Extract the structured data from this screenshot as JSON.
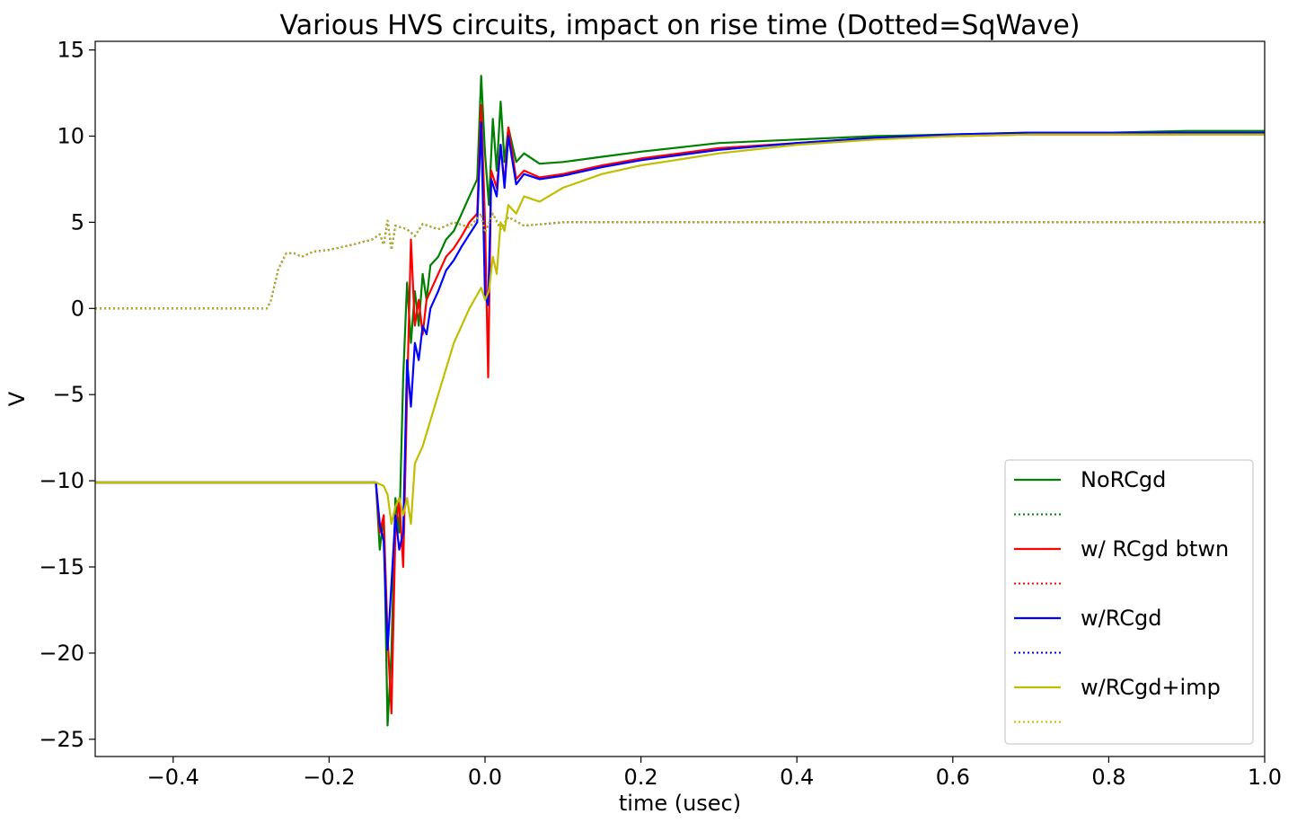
{
  "chart_data": {
    "type": "line",
    "title": "Various HVS circuits, impact on rise time (Dotted=SqWave)",
    "xlabel": "time (usec)",
    "ylabel": "V",
    "xlim": [
      -0.5,
      1.0
    ],
    "ylim": [
      -26,
      15.5
    ],
    "xticks": [
      -0.4,
      -0.2,
      0.0,
      0.2,
      0.4,
      0.6,
      0.8,
      1.0
    ],
    "xtick_labels": [
      "−0.4",
      "−0.2",
      "0.0",
      "0.2",
      "0.4",
      "0.6",
      "0.8",
      "1.0"
    ],
    "yticks": [
      15,
      10,
      5,
      0,
      -5,
      -10,
      -15,
      -20,
      -25
    ],
    "ytick_labels": [
      "15",
      "10",
      "5",
      "0",
      "−5",
      "−10",
      "−15",
      "−20",
      "−25"
    ],
    "grid": false,
    "legend_position": "lower-right",
    "series": [
      {
        "name": "NoRCgd",
        "color": "#008000",
        "style": "solid",
        "points": [
          [
            -0.5,
            -10.1
          ],
          [
            -0.14,
            -10.1
          ],
          [
            -0.135,
            -14
          ],
          [
            -0.13,
            -12
          ],
          [
            -0.125,
            -24.2
          ],
          [
            -0.12,
            -20
          ],
          [
            -0.115,
            -11
          ],
          [
            -0.11,
            -13
          ],
          [
            -0.105,
            -4
          ],
          [
            -0.1,
            1.5
          ],
          [
            -0.095,
            -2
          ],
          [
            -0.09,
            1
          ],
          [
            -0.085,
            -1
          ],
          [
            -0.08,
            2
          ],
          [
            -0.075,
            0.5
          ],
          [
            -0.07,
            2.5
          ],
          [
            -0.06,
            3
          ],
          [
            -0.05,
            4
          ],
          [
            -0.04,
            4.5
          ],
          [
            -0.03,
            5.5
          ],
          [
            -0.02,
            6.5
          ],
          [
            -0.01,
            7.5
          ],
          [
            -0.005,
            13.5
          ],
          [
            0.0,
            9
          ],
          [
            0.005,
            6
          ],
          [
            0.01,
            11
          ],
          [
            0.015,
            8
          ],
          [
            0.02,
            12
          ],
          [
            0.025,
            8.5
          ],
          [
            0.03,
            10.5
          ],
          [
            0.04,
            8.5
          ],
          [
            0.05,
            9
          ],
          [
            0.07,
            8.4
          ],
          [
            0.1,
            8.5
          ],
          [
            0.15,
            8.8
          ],
          [
            0.2,
            9.1
          ],
          [
            0.3,
            9.6
          ],
          [
            0.4,
            9.8
          ],
          [
            0.5,
            10
          ],
          [
            0.6,
            10.1
          ],
          [
            0.7,
            10.2
          ],
          [
            0.8,
            10.2
          ],
          [
            0.9,
            10.3
          ],
          [
            1.0,
            10.3
          ]
        ]
      },
      {
        "name": "",
        "color": "#008000",
        "style": "dotted",
        "points": [
          [
            -0.5,
            0
          ],
          [
            -0.28,
            0
          ],
          [
            -0.275,
            0.4
          ],
          [
            -0.265,
            2.3
          ],
          [
            -0.255,
            3.2
          ],
          [
            -0.245,
            3.2
          ],
          [
            -0.235,
            3
          ],
          [
            -0.22,
            3.3
          ],
          [
            -0.2,
            3.4
          ],
          [
            -0.17,
            3.7
          ],
          [
            -0.145,
            4
          ],
          [
            -0.135,
            4.3
          ],
          [
            -0.13,
            3.7
          ],
          [
            -0.125,
            5.1
          ],
          [
            -0.12,
            3.4
          ],
          [
            -0.115,
            4.8
          ],
          [
            -0.1,
            4.6
          ],
          [
            -0.09,
            4.2
          ],
          [
            -0.08,
            4.9
          ],
          [
            -0.06,
            4.6
          ],
          [
            -0.04,
            5
          ],
          [
            -0.02,
            4.7
          ],
          [
            -0.005,
            5.5
          ],
          [
            0.0,
            4.4
          ],
          [
            0.01,
            5.5
          ],
          [
            0.02,
            4.6
          ],
          [
            0.03,
            5.3
          ],
          [
            0.05,
            4.8
          ],
          [
            0.1,
            5
          ],
          [
            0.5,
            5
          ],
          [
            1.0,
            5
          ]
        ]
      },
      {
        "name": "w/ RCgd btwn",
        "color": "#ff0000",
        "style": "solid",
        "points": [
          [
            -0.5,
            -10.1
          ],
          [
            -0.14,
            -10.1
          ],
          [
            -0.135,
            -13
          ],
          [
            -0.13,
            -12
          ],
          [
            -0.125,
            -19
          ],
          [
            -0.12,
            -23.5
          ],
          [
            -0.115,
            -13
          ],
          [
            -0.11,
            -11
          ],
          [
            -0.105,
            -15
          ],
          [
            -0.1,
            -5
          ],
          [
            -0.095,
            4
          ],
          [
            -0.09,
            -1
          ],
          [
            -0.085,
            0.5
          ],
          [
            -0.08,
            -1.5
          ],
          [
            -0.075,
            0.5
          ],
          [
            -0.07,
            1
          ],
          [
            -0.06,
            2
          ],
          [
            -0.05,
            3
          ],
          [
            -0.04,
            3.5
          ],
          [
            -0.03,
            4.2
          ],
          [
            -0.02,
            5
          ],
          [
            -0.01,
            5.5
          ],
          [
            -0.005,
            11.8
          ],
          [
            0.0,
            5
          ],
          [
            0.004,
            -4
          ],
          [
            0.008,
            8
          ],
          [
            0.015,
            7
          ],
          [
            0.02,
            9.5
          ],
          [
            0.025,
            7.2
          ],
          [
            0.03,
            10.5
          ],
          [
            0.04,
            7.5
          ],
          [
            0.05,
            8
          ],
          [
            0.07,
            7.6
          ],
          [
            0.1,
            7.8
          ],
          [
            0.15,
            8.3
          ],
          [
            0.2,
            8.7
          ],
          [
            0.3,
            9.3
          ],
          [
            0.4,
            9.6
          ],
          [
            0.5,
            9.9
          ],
          [
            0.6,
            10
          ],
          [
            0.7,
            10.1
          ],
          [
            0.8,
            10.1
          ],
          [
            0.9,
            10.1
          ],
          [
            1.0,
            10.1
          ]
        ]
      },
      {
        "name": "",
        "color": "#ff0000",
        "style": "dotted",
        "points": [
          [
            -0.5,
            0
          ],
          [
            -0.28,
            0
          ],
          [
            -0.275,
            0.4
          ],
          [
            -0.265,
            2.3
          ],
          [
            -0.255,
            3.2
          ],
          [
            -0.245,
            3.2
          ],
          [
            -0.235,
            3
          ],
          [
            -0.22,
            3.3
          ],
          [
            -0.2,
            3.4
          ],
          [
            -0.17,
            3.7
          ],
          [
            -0.145,
            4
          ],
          [
            -0.135,
            4.3
          ],
          [
            -0.13,
            3.7
          ],
          [
            -0.125,
            5.1
          ],
          [
            -0.12,
            3.4
          ],
          [
            -0.115,
            4.8
          ],
          [
            -0.1,
            4.6
          ],
          [
            -0.09,
            4.2
          ],
          [
            -0.08,
            4.9
          ],
          [
            -0.06,
            4.6
          ],
          [
            -0.04,
            5
          ],
          [
            -0.02,
            4.7
          ],
          [
            -0.005,
            5.5
          ],
          [
            0.0,
            4.4
          ],
          [
            0.01,
            5.5
          ],
          [
            0.02,
            4.6
          ],
          [
            0.03,
            5.3
          ],
          [
            0.05,
            4.8
          ],
          [
            0.1,
            5
          ],
          [
            0.5,
            5
          ],
          [
            1.0,
            5
          ]
        ]
      },
      {
        "name": "w/RCgd",
        "color": "#0000ff",
        "style": "solid",
        "points": [
          [
            -0.5,
            -10.1
          ],
          [
            -0.14,
            -10.1
          ],
          [
            -0.135,
            -12.5
          ],
          [
            -0.13,
            -13.5
          ],
          [
            -0.125,
            -19.8
          ],
          [
            -0.12,
            -16
          ],
          [
            -0.115,
            -12
          ],
          [
            -0.11,
            -14
          ],
          [
            -0.105,
            -13
          ],
          [
            -0.1,
            -3
          ],
          [
            -0.095,
            -5.7
          ],
          [
            -0.09,
            -2
          ],
          [
            -0.085,
            -3
          ],
          [
            -0.08,
            -1
          ],
          [
            -0.075,
            -1.5
          ],
          [
            -0.07,
            0
          ],
          [
            -0.06,
            1
          ],
          [
            -0.05,
            2.2
          ],
          [
            -0.04,
            2.8
          ],
          [
            -0.03,
            3.6
          ],
          [
            -0.02,
            4.3
          ],
          [
            -0.01,
            5
          ],
          [
            -0.005,
            10.8
          ],
          [
            0.0,
            0.8
          ],
          [
            0.004,
            0.2
          ],
          [
            0.008,
            7.5
          ],
          [
            0.015,
            6.5
          ],
          [
            0.02,
            9.5
          ],
          [
            0.025,
            7
          ],
          [
            0.03,
            10
          ],
          [
            0.04,
            7.2
          ],
          [
            0.05,
            7.8
          ],
          [
            0.07,
            7.5
          ],
          [
            0.1,
            7.7
          ],
          [
            0.15,
            8.2
          ],
          [
            0.2,
            8.6
          ],
          [
            0.3,
            9.2
          ],
          [
            0.4,
            9.6
          ],
          [
            0.5,
            9.9
          ],
          [
            0.6,
            10.1
          ],
          [
            0.7,
            10.2
          ],
          [
            0.8,
            10.2
          ],
          [
            0.9,
            10.2
          ],
          [
            1.0,
            10.2
          ]
        ]
      },
      {
        "name": "",
        "color": "#0000ff",
        "style": "dotted",
        "points": [
          [
            -0.5,
            0
          ],
          [
            -0.28,
            0
          ],
          [
            -0.275,
            0.4
          ],
          [
            -0.265,
            2.3
          ],
          [
            -0.255,
            3.2
          ],
          [
            -0.245,
            3.2
          ],
          [
            -0.235,
            3
          ],
          [
            -0.22,
            3.3
          ],
          [
            -0.2,
            3.4
          ],
          [
            -0.17,
            3.7
          ],
          [
            -0.145,
            4
          ],
          [
            -0.135,
            4.3
          ],
          [
            -0.13,
            3.7
          ],
          [
            -0.125,
            5.1
          ],
          [
            -0.12,
            3.4
          ],
          [
            -0.115,
            4.8
          ],
          [
            -0.1,
            4.6
          ],
          [
            -0.09,
            4.2
          ],
          [
            -0.08,
            4.9
          ],
          [
            -0.06,
            4.6
          ],
          [
            -0.04,
            5
          ],
          [
            -0.02,
            4.7
          ],
          [
            -0.005,
            5.5
          ],
          [
            0.0,
            4.4
          ],
          [
            0.01,
            5.5
          ],
          [
            0.02,
            4.6
          ],
          [
            0.03,
            5.3
          ],
          [
            0.05,
            4.8
          ],
          [
            0.1,
            5
          ],
          [
            0.5,
            5
          ],
          [
            1.0,
            5
          ]
        ]
      },
      {
        "name": "w/RCgd+imp",
        "color": "#bfbf00",
        "style": "solid",
        "points": [
          [
            -0.5,
            -10.1
          ],
          [
            -0.14,
            -10.1
          ],
          [
            -0.13,
            -10.3
          ],
          [
            -0.125,
            -10.8
          ],
          [
            -0.12,
            -12.5
          ],
          [
            -0.115,
            -11.5
          ],
          [
            -0.11,
            -11
          ],
          [
            -0.105,
            -12
          ],
          [
            -0.1,
            -11
          ],
          [
            -0.095,
            -12.5
          ],
          [
            -0.09,
            -9
          ],
          [
            -0.08,
            -8
          ],
          [
            -0.07,
            -6.5
          ],
          [
            -0.06,
            -5
          ],
          [
            -0.05,
            -3.5
          ],
          [
            -0.04,
            -2
          ],
          [
            -0.03,
            -1
          ],
          [
            -0.02,
            0
          ],
          [
            -0.01,
            0.8
          ],
          [
            -0.005,
            1.2
          ],
          [
            0.0,
            0.5
          ],
          [
            0.005,
            1
          ],
          [
            0.01,
            3
          ],
          [
            0.015,
            2
          ],
          [
            0.02,
            5
          ],
          [
            0.025,
            4.5
          ],
          [
            0.03,
            6
          ],
          [
            0.04,
            5.5
          ],
          [
            0.05,
            6.5
          ],
          [
            0.07,
            6.2
          ],
          [
            0.1,
            7
          ],
          [
            0.15,
            7.8
          ],
          [
            0.2,
            8.3
          ],
          [
            0.3,
            9
          ],
          [
            0.4,
            9.5
          ],
          [
            0.5,
            9.8
          ],
          [
            0.6,
            10
          ],
          [
            0.7,
            10.1
          ],
          [
            0.8,
            10.1
          ],
          [
            0.9,
            10.1
          ],
          [
            1.0,
            10.1
          ]
        ]
      },
      {
        "name": "",
        "color": "#bfbf00",
        "style": "dotted",
        "points": [
          [
            -0.5,
            0
          ],
          [
            -0.28,
            0
          ],
          [
            -0.275,
            0.4
          ],
          [
            -0.265,
            2.3
          ],
          [
            -0.255,
            3.2
          ],
          [
            -0.245,
            3.2
          ],
          [
            -0.235,
            3
          ],
          [
            -0.22,
            3.3
          ],
          [
            -0.2,
            3.4
          ],
          [
            -0.17,
            3.7
          ],
          [
            -0.145,
            4
          ],
          [
            -0.135,
            4.3
          ],
          [
            -0.13,
            3.7
          ],
          [
            -0.125,
            5.1
          ],
          [
            -0.12,
            3.4
          ],
          [
            -0.115,
            4.8
          ],
          [
            -0.1,
            4.6
          ],
          [
            -0.09,
            4.2
          ],
          [
            -0.08,
            4.9
          ],
          [
            -0.06,
            4.6
          ],
          [
            -0.04,
            5
          ],
          [
            -0.02,
            4.7
          ],
          [
            -0.005,
            5.5
          ],
          [
            0.0,
            4.4
          ],
          [
            0.01,
            5.5
          ],
          [
            0.02,
            4.6
          ],
          [
            0.03,
            5.3
          ],
          [
            0.05,
            4.8
          ],
          [
            0.1,
            5
          ],
          [
            0.5,
            5
          ],
          [
            1.0,
            5
          ]
        ]
      }
    ]
  }
}
